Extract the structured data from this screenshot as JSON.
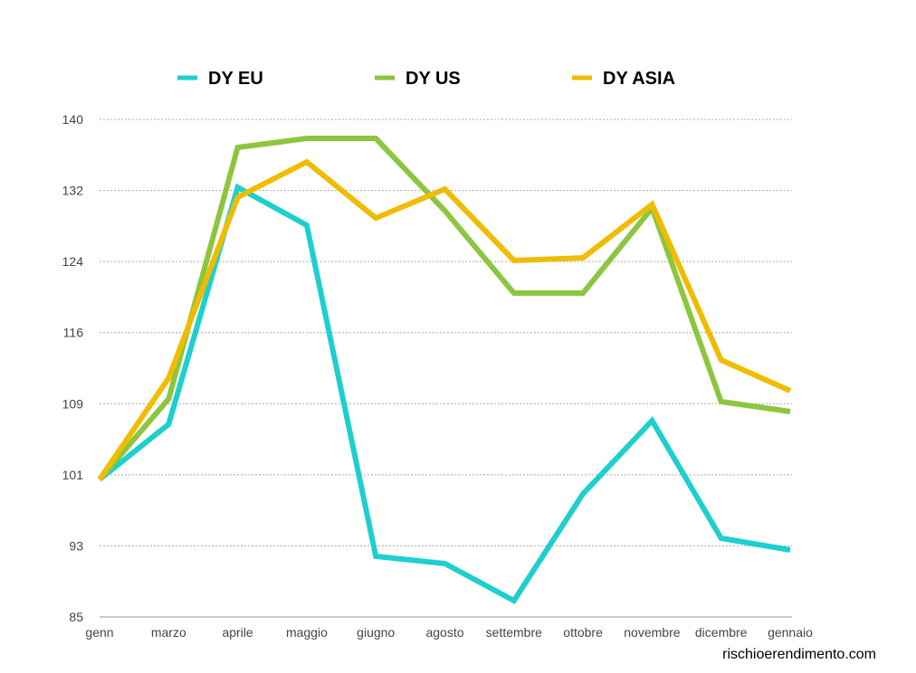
{
  "chart_data": {
    "type": "line",
    "categories": [
      "genn",
      "marzo",
      "aprile",
      "maggio",
      "giugno",
      "agosto",
      "settembre",
      "ottobre",
      "novembre",
      "dicembre",
      "gennaio"
    ],
    "ylim": [
      85,
      140
    ],
    "yticks": [
      "85",
      "93",
      "101",
      "109",
      "116",
      "124",
      "132",
      "140"
    ],
    "grid": true,
    "legend_position": "top",
    "series": [
      {
        "name": "DY EU",
        "color": "#1ecfcf",
        "values": [
          100.2,
          106.3,
          132.5,
          128.3,
          91.7,
          90.9,
          86.8,
          98.6,
          106.7,
          93.7,
          92.4
        ]
      },
      {
        "name": "DY US",
        "color": "#8cc63f",
        "values": [
          100.2,
          109.1,
          136.9,
          137.9,
          137.9,
          129.9,
          120.8,
          120.8,
          130.2,
          108.8,
          107.7
        ]
      },
      {
        "name": "DY ASIA",
        "color": "#f0bc00",
        "values": [
          100.2,
          111.4,
          131.4,
          135.3,
          129.1,
          132.3,
          124.4,
          124.7,
          130.6,
          113.4,
          110.0
        ]
      }
    ]
  },
  "credit": "rischioerendimento.com"
}
